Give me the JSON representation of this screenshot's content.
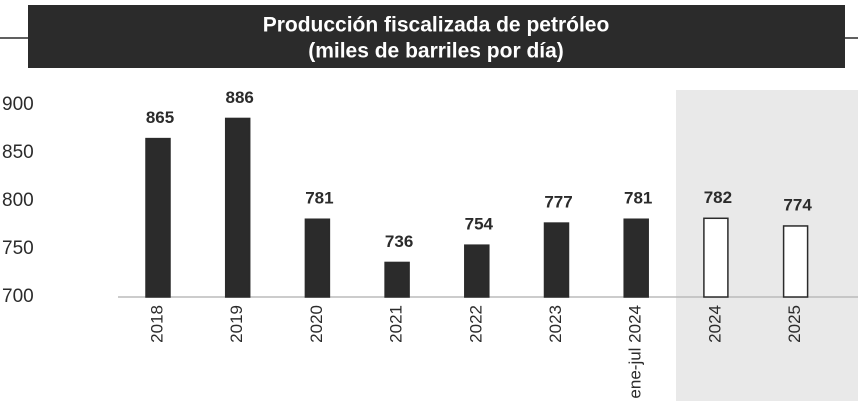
{
  "chart_data": {
    "type": "bar",
    "title": "Producción fiscalizada de petróleo",
    "subtitle": "(miles de barriles por día)",
    "categories": [
      "2018",
      "2019",
      "2020",
      "2021",
      "2022",
      "2023",
      "ene-jul 2024",
      "2024",
      "2025"
    ],
    "values": [
      865,
      886,
      781,
      736,
      754,
      777,
      781,
      782,
      774
    ],
    "colors": [
      "#2b2b2b",
      "#2b2b2b",
      "#2b2b2b",
      "#2b2b2b",
      "#2b2b2b",
      "#2b2b2b",
      "#2b2b2b",
      "#ffffff",
      "#ffffff"
    ],
    "edgecolor": "#2b2b2b",
    "ylim": [
      700,
      900
    ],
    "yticks": [
      700,
      750,
      800,
      850,
      900
    ],
    "grid": false
  }
}
